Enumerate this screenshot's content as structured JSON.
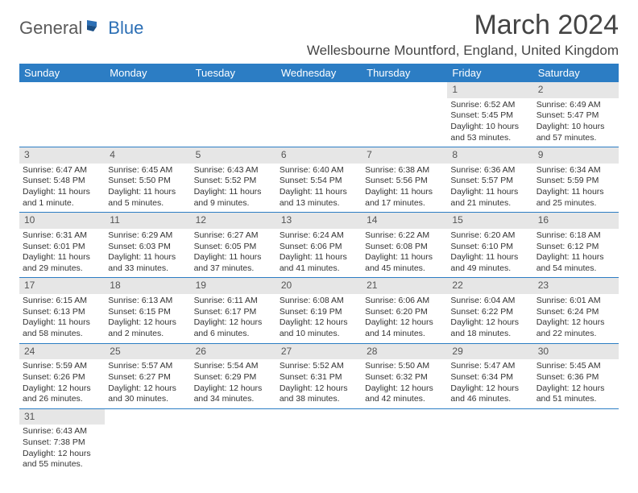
{
  "logo": {
    "part1": "General",
    "part2": "Blue"
  },
  "title": "March 2024",
  "location": "Wellesbourne Mountford, England, United Kingdom",
  "colors": {
    "header_bg": "#2c7dc4",
    "header_text": "#ffffff",
    "daynum_bg": "#e6e6e6",
    "row_divider": "#2c7dc4",
    "logo_gray": "#5a5a5a",
    "logo_blue": "#2c6fb5"
  },
  "day_headers": [
    "Sunday",
    "Monday",
    "Tuesday",
    "Wednesday",
    "Thursday",
    "Friday",
    "Saturday"
  ],
  "weeks": [
    {
      "nums": [
        "",
        "",
        "",
        "",
        "",
        "1",
        "2"
      ],
      "cells": [
        null,
        null,
        null,
        null,
        null,
        {
          "sunrise": "Sunrise: 6:52 AM",
          "sunset": "Sunset: 5:45 PM",
          "day1": "Daylight: 10 hours",
          "day2": "and 53 minutes."
        },
        {
          "sunrise": "Sunrise: 6:49 AM",
          "sunset": "Sunset: 5:47 PM",
          "day1": "Daylight: 10 hours",
          "day2": "and 57 minutes."
        }
      ]
    },
    {
      "nums": [
        "3",
        "4",
        "5",
        "6",
        "7",
        "8",
        "9"
      ],
      "cells": [
        {
          "sunrise": "Sunrise: 6:47 AM",
          "sunset": "Sunset: 5:48 PM",
          "day1": "Daylight: 11 hours",
          "day2": "and 1 minute."
        },
        {
          "sunrise": "Sunrise: 6:45 AM",
          "sunset": "Sunset: 5:50 PM",
          "day1": "Daylight: 11 hours",
          "day2": "and 5 minutes."
        },
        {
          "sunrise": "Sunrise: 6:43 AM",
          "sunset": "Sunset: 5:52 PM",
          "day1": "Daylight: 11 hours",
          "day2": "and 9 minutes."
        },
        {
          "sunrise": "Sunrise: 6:40 AM",
          "sunset": "Sunset: 5:54 PM",
          "day1": "Daylight: 11 hours",
          "day2": "and 13 minutes."
        },
        {
          "sunrise": "Sunrise: 6:38 AM",
          "sunset": "Sunset: 5:56 PM",
          "day1": "Daylight: 11 hours",
          "day2": "and 17 minutes."
        },
        {
          "sunrise": "Sunrise: 6:36 AM",
          "sunset": "Sunset: 5:57 PM",
          "day1": "Daylight: 11 hours",
          "day2": "and 21 minutes."
        },
        {
          "sunrise": "Sunrise: 6:34 AM",
          "sunset": "Sunset: 5:59 PM",
          "day1": "Daylight: 11 hours",
          "day2": "and 25 minutes."
        }
      ]
    },
    {
      "nums": [
        "10",
        "11",
        "12",
        "13",
        "14",
        "15",
        "16"
      ],
      "cells": [
        {
          "sunrise": "Sunrise: 6:31 AM",
          "sunset": "Sunset: 6:01 PM",
          "day1": "Daylight: 11 hours",
          "day2": "and 29 minutes."
        },
        {
          "sunrise": "Sunrise: 6:29 AM",
          "sunset": "Sunset: 6:03 PM",
          "day1": "Daylight: 11 hours",
          "day2": "and 33 minutes."
        },
        {
          "sunrise": "Sunrise: 6:27 AM",
          "sunset": "Sunset: 6:05 PM",
          "day1": "Daylight: 11 hours",
          "day2": "and 37 minutes."
        },
        {
          "sunrise": "Sunrise: 6:24 AM",
          "sunset": "Sunset: 6:06 PM",
          "day1": "Daylight: 11 hours",
          "day2": "and 41 minutes."
        },
        {
          "sunrise": "Sunrise: 6:22 AM",
          "sunset": "Sunset: 6:08 PM",
          "day1": "Daylight: 11 hours",
          "day2": "and 45 minutes."
        },
        {
          "sunrise": "Sunrise: 6:20 AM",
          "sunset": "Sunset: 6:10 PM",
          "day1": "Daylight: 11 hours",
          "day2": "and 49 minutes."
        },
        {
          "sunrise": "Sunrise: 6:18 AM",
          "sunset": "Sunset: 6:12 PM",
          "day1": "Daylight: 11 hours",
          "day2": "and 54 minutes."
        }
      ]
    },
    {
      "nums": [
        "17",
        "18",
        "19",
        "20",
        "21",
        "22",
        "23"
      ],
      "cells": [
        {
          "sunrise": "Sunrise: 6:15 AM",
          "sunset": "Sunset: 6:13 PM",
          "day1": "Daylight: 11 hours",
          "day2": "and 58 minutes."
        },
        {
          "sunrise": "Sunrise: 6:13 AM",
          "sunset": "Sunset: 6:15 PM",
          "day1": "Daylight: 12 hours",
          "day2": "and 2 minutes."
        },
        {
          "sunrise": "Sunrise: 6:11 AM",
          "sunset": "Sunset: 6:17 PM",
          "day1": "Daylight: 12 hours",
          "day2": "and 6 minutes."
        },
        {
          "sunrise": "Sunrise: 6:08 AM",
          "sunset": "Sunset: 6:19 PM",
          "day1": "Daylight: 12 hours",
          "day2": "and 10 minutes."
        },
        {
          "sunrise": "Sunrise: 6:06 AM",
          "sunset": "Sunset: 6:20 PM",
          "day1": "Daylight: 12 hours",
          "day2": "and 14 minutes."
        },
        {
          "sunrise": "Sunrise: 6:04 AM",
          "sunset": "Sunset: 6:22 PM",
          "day1": "Daylight: 12 hours",
          "day2": "and 18 minutes."
        },
        {
          "sunrise": "Sunrise: 6:01 AM",
          "sunset": "Sunset: 6:24 PM",
          "day1": "Daylight: 12 hours",
          "day2": "and 22 minutes."
        }
      ]
    },
    {
      "nums": [
        "24",
        "25",
        "26",
        "27",
        "28",
        "29",
        "30"
      ],
      "cells": [
        {
          "sunrise": "Sunrise: 5:59 AM",
          "sunset": "Sunset: 6:26 PM",
          "day1": "Daylight: 12 hours",
          "day2": "and 26 minutes."
        },
        {
          "sunrise": "Sunrise: 5:57 AM",
          "sunset": "Sunset: 6:27 PM",
          "day1": "Daylight: 12 hours",
          "day2": "and 30 minutes."
        },
        {
          "sunrise": "Sunrise: 5:54 AM",
          "sunset": "Sunset: 6:29 PM",
          "day1": "Daylight: 12 hours",
          "day2": "and 34 minutes."
        },
        {
          "sunrise": "Sunrise: 5:52 AM",
          "sunset": "Sunset: 6:31 PM",
          "day1": "Daylight: 12 hours",
          "day2": "and 38 minutes."
        },
        {
          "sunrise": "Sunrise: 5:50 AM",
          "sunset": "Sunset: 6:32 PM",
          "day1": "Daylight: 12 hours",
          "day2": "and 42 minutes."
        },
        {
          "sunrise": "Sunrise: 5:47 AM",
          "sunset": "Sunset: 6:34 PM",
          "day1": "Daylight: 12 hours",
          "day2": "and 46 minutes."
        },
        {
          "sunrise": "Sunrise: 5:45 AM",
          "sunset": "Sunset: 6:36 PM",
          "day1": "Daylight: 12 hours",
          "day2": "and 51 minutes."
        }
      ]
    },
    {
      "nums": [
        "31",
        "",
        "",
        "",
        "",
        "",
        ""
      ],
      "cells": [
        {
          "sunrise": "Sunrise: 6:43 AM",
          "sunset": "Sunset: 7:38 PM",
          "day1": "Daylight: 12 hours",
          "day2": "and 55 minutes."
        },
        null,
        null,
        null,
        null,
        null,
        null
      ]
    }
  ]
}
